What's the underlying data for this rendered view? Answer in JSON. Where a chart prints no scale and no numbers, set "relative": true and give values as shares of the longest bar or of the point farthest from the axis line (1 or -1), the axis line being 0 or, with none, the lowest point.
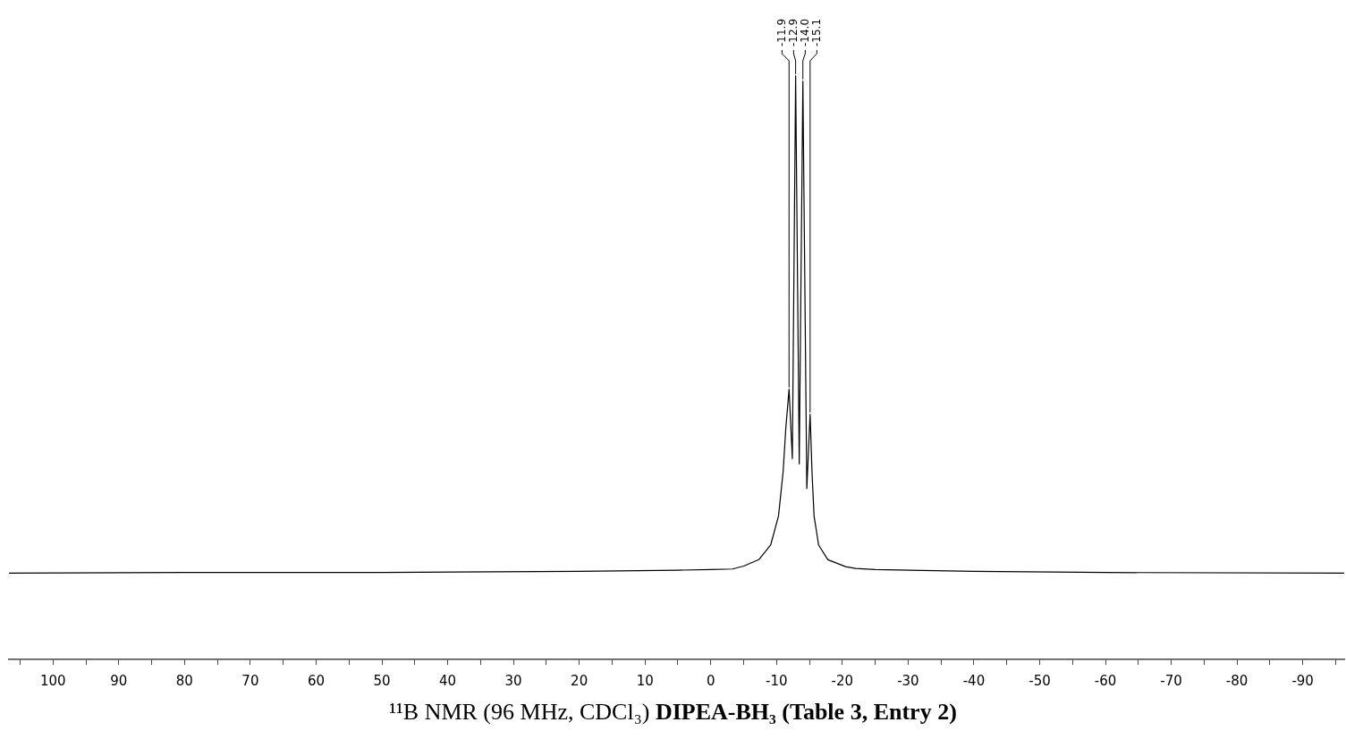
{
  "chart_data": {
    "type": "line",
    "title": "¹¹B NMR (96 MHz, CDCl₃)",
    "subtitle": "DIPEA-BH₃ (Table 3, Entry 2)",
    "relative": true,
    "marker": "none",
    "grid": false,
    "tick_labels": "x",
    "xlim": [
      106.7,
      -96.3
    ],
    "xticks": [
      {
        "value": 105,
        "label": null
      },
      100,
      {
        "value": 95,
        "label": null
      },
      90,
      {
        "value": 85,
        "label": null
      },
      80,
      {
        "value": 75,
        "label": null
      },
      70,
      {
        "value": 65,
        "label": null
      },
      60,
      {
        "value": 55,
        "label": null
      },
      50,
      {
        "value": 45,
        "label": null
      },
      40,
      {
        "value": 35,
        "label": null
      },
      30,
      {
        "value": 25,
        "label": null
      },
      20,
      {
        "value": 15,
        "label": null
      },
      10,
      {
        "value": 5,
        "label": null
      },
      0,
      {
        "value": -5,
        "label": null
      },
      -10,
      {
        "value": -15,
        "label": null
      },
      -20,
      {
        "value": -25,
        "label": null
      },
      -30,
      {
        "value": -35,
        "label": null
      },
      -40,
      {
        "value": -45,
        "label": null
      },
      -50,
      {
        "value": -55,
        "label": null
      },
      -60,
      {
        "value": -65,
        "label": null
      },
      -70,
      {
        "value": -75,
        "label": null
      },
      -80,
      {
        "value": -85,
        "label": null
      },
      -90,
      {
        "value": -95,
        "label": null
      }
    ],
    "series": [
      {
        "color": "#000000",
        "x": [
          106.7,
          80,
          50,
          20,
          5,
          0,
          -3.3,
          -5,
          -7.3,
          -9.1,
          -10.3,
          -11.0,
          -11.4,
          -11.9,
          -12.4,
          -12.9,
          -13.45,
          -14.0,
          -14.6,
          -15.1,
          -15.4,
          -15.7,
          -16.4,
          -17.8,
          -20.5,
          -22,
          -25,
          -40,
          -60,
          -96.3
        ],
        "values": [
          0.148,
          0.149,
          0.149,
          0.151,
          0.153,
          0.154,
          0.155,
          0.16,
          0.171,
          0.196,
          0.246,
          0.322,
          0.395,
          0.463,
          0.344,
          1.0,
          0.335,
          0.991,
          0.293,
          0.42,
          0.318,
          0.246,
          0.196,
          0.171,
          0.159,
          0.156,
          0.154,
          0.151,
          0.149,
          0.148
        ]
      }
    ],
    "annotations": [
      {
        "text": "-11.9",
        "x": -11.9,
        "y": 0.463
      },
      {
        "text": "-12.9",
        "x": -12.9,
        "y": 1.0
      },
      {
        "text": "-14.0",
        "x": -14.0,
        "y": 0.991
      },
      {
        "text": "-15.1",
        "x": -15.1,
        "y": 0.42
      }
    ]
  }
}
